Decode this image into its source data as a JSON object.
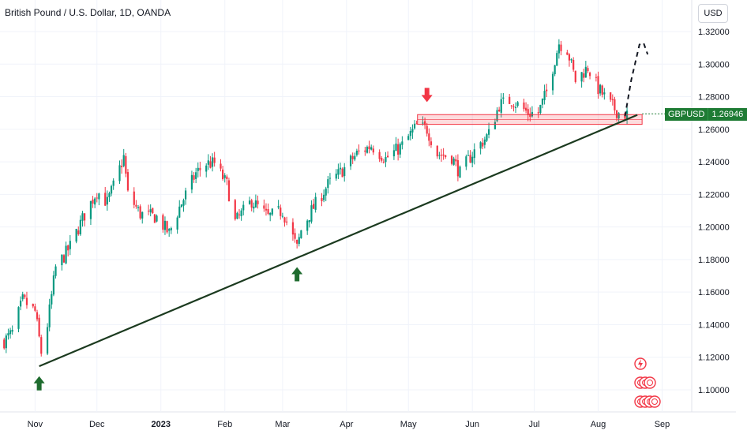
{
  "header": {
    "title": "British Pound / U.S. Dollar, 1D, OANDA",
    "currency_button": "USD"
  },
  "price_tag": {
    "symbol": "GBPUSD",
    "value": "1.26946"
  },
  "colors": {
    "up": "#089981",
    "down": "#f23645",
    "grid": "#f0f3fa",
    "axis_text": "#131722",
    "trendline": "#1b3a1f",
    "zone_fill": "rgba(242,54,69,0.18)",
    "zone_stroke": "#f23645",
    "arrow_up": "#1e6b2e",
    "arrow_down": "#f23645",
    "price_tag": "#1e7b34"
  },
  "chart_data": {
    "type": "candlestick",
    "symbol": "GBPUSD",
    "interval": "1D",
    "x_ticks": [
      "Nov",
      "Dec",
      "2023",
      "Feb",
      "Mar",
      "Apr",
      "May",
      "Jun",
      "Jul",
      "Aug",
      "Sep"
    ],
    "y_ticks": [
      "1.32000",
      "1.30000",
      "1.28000",
      "1.26000",
      "1.24000",
      "1.22000",
      "1.20000",
      "1.18000",
      "1.16000",
      "1.14000",
      "1.12000",
      "1.10000"
    ],
    "ylim": [
      1.092,
      1.328
    ],
    "xlim": [
      "2022-10-15",
      "2023-09-10"
    ],
    "last_price": 1.26946,
    "price_path": [
      [
        "2022-10-17",
        1.13
      ],
      [
        "2022-10-21",
        1.135
      ],
      [
        "2022-10-26",
        1.155
      ],
      [
        "2022-11-01",
        1.148
      ],
      [
        "2022-11-04",
        1.123
      ],
      [
        "2022-11-07",
        1.14
      ],
      [
        "2022-11-11",
        1.175
      ],
      [
        "2022-11-15",
        1.182
      ],
      [
        "2022-11-18",
        1.188
      ],
      [
        "2022-11-24",
        1.205
      ],
      [
        "2022-12-01",
        1.222
      ],
      [
        "2022-12-06",
        1.215
      ],
      [
        "2022-12-09",
        1.225
      ],
      [
        "2022-12-14",
        1.243
      ],
      [
        "2022-12-16",
        1.22
      ],
      [
        "2022-12-22",
        1.208
      ],
      [
        "2022-12-30",
        1.206
      ],
      [
        "2023-01-05",
        1.196
      ],
      [
        "2023-01-10",
        1.212
      ],
      [
        "2023-01-18",
        1.233
      ],
      [
        "2023-01-23",
        1.239
      ],
      [
        "2023-01-27",
        1.239
      ],
      [
        "2023-02-02",
        1.226
      ],
      [
        "2023-02-06",
        1.203
      ],
      [
        "2023-02-14",
        1.216
      ],
      [
        "2023-02-22",
        1.206
      ],
      [
        "2023-03-01",
        1.21
      ],
      [
        "2023-03-08",
        1.187
      ],
      [
        "2023-03-10",
        1.198
      ],
      [
        "2023-03-15",
        1.21
      ],
      [
        "2023-03-23",
        1.226
      ],
      [
        "2023-03-31",
        1.236
      ],
      [
        "2023-04-06",
        1.245
      ],
      [
        "2023-04-13",
        1.25
      ],
      [
        "2023-04-20",
        1.242
      ],
      [
        "2023-04-28",
        1.25
      ],
      [
        "2023-05-05",
        1.262
      ],
      [
        "2023-05-10",
        1.26
      ],
      [
        "2023-05-15",
        1.245
      ],
      [
        "2023-05-22",
        1.243
      ],
      [
        "2023-05-26",
        1.233
      ],
      [
        "2023-06-01",
        1.245
      ],
      [
        "2023-06-09",
        1.257
      ],
      [
        "2023-06-14",
        1.275
      ],
      [
        "2023-06-20",
        1.278
      ],
      [
        "2023-06-28",
        1.27
      ],
      [
        "2023-07-03",
        1.27
      ],
      [
        "2023-07-07",
        1.283
      ],
      [
        "2023-07-13",
        1.313
      ],
      [
        "2023-07-17",
        1.309
      ],
      [
        "2023-07-21",
        1.29
      ],
      [
        "2023-07-27",
        1.298
      ],
      [
        "2023-08-01",
        1.285
      ],
      [
        "2023-08-07",
        1.275
      ],
      [
        "2023-08-11",
        1.27
      ],
      [
        "2023-08-15",
        1.269
      ]
    ],
    "annotations": {
      "resistance_zone": {
        "from": "2023-05-10",
        "to": "2023-08-20",
        "top": 1.269,
        "bottom": 1.263
      },
      "trendline": [
        [
          "2022-11-03",
          1.1145
        ],
        [
          "2023-08-20",
          1.2688
        ]
      ],
      "up_arrows": [
        [
          "2022-11-03",
          1.103
        ],
        [
          "2023-03-08",
          1.17
        ]
      ],
      "down_arrows": [
        [
          "2023-05-10",
          1.282
        ]
      ],
      "projection": [
        [
          "2023-08-14",
          1.268
        ],
        [
          "2023-08-17",
          1.29
        ],
        [
          "2023-08-21",
          1.312
        ],
        [
          "2023-08-23",
          1.313
        ],
        [
          "2023-08-25",
          1.306
        ]
      ]
    }
  }
}
